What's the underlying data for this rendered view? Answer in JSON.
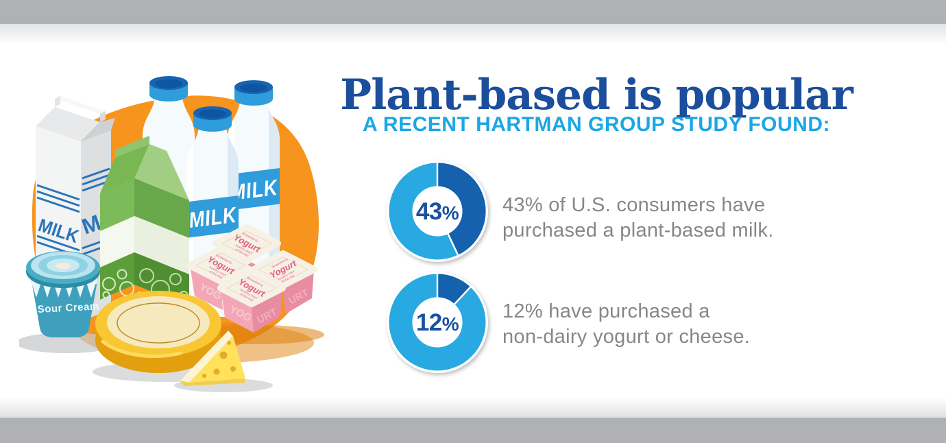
{
  "header": {
    "title": "Plant-based is popular",
    "subtitle": "A RECENT HARTMAN GROUP STUDY FOUND:",
    "title_color": "#1B4E9C",
    "subtitle_color": "#1BA7E3"
  },
  "chart_data": [
    {
      "type": "donut",
      "value": 43,
      "remainder": 57,
      "center_value": "43",
      "center_suffix": "%",
      "color_value": "#1561AE",
      "color_rest": "#29A9E1",
      "caption": "43% of U.S. consumers have purchased a plant-based milk."
    },
    {
      "type": "donut",
      "value": 12,
      "remainder": 88,
      "center_value": "12",
      "center_suffix": "%",
      "color_value": "#1561AE",
      "color_rest": "#29A9E1",
      "caption": "12% have purchased a non-dairy yogurt or cheese."
    }
  ],
  "stats": [
    {
      "line1": "43% of U.S. consumers have",
      "line2": "purchased a plant-based milk."
    },
    {
      "line1": "12% have purchased a",
      "line2": "non-dairy yogurt or cheese."
    }
  ],
  "illustration": {
    "blob_color": "#F7941D",
    "milk_carton_label": "MILK",
    "milk_carton_side_label": "M",
    "milk_bottle_label": "MILK",
    "sour_cream_label": "Sour Cream",
    "yogurt_label": "Yogurt",
    "yogurt_flavor": "Strawberry",
    "yogurt_tagline_line1": "healthy start",
    "yogurt_tagline_line2": "of the day",
    "yogurt_side_left": "YOG",
    "yogurt_side_right": "URT"
  }
}
